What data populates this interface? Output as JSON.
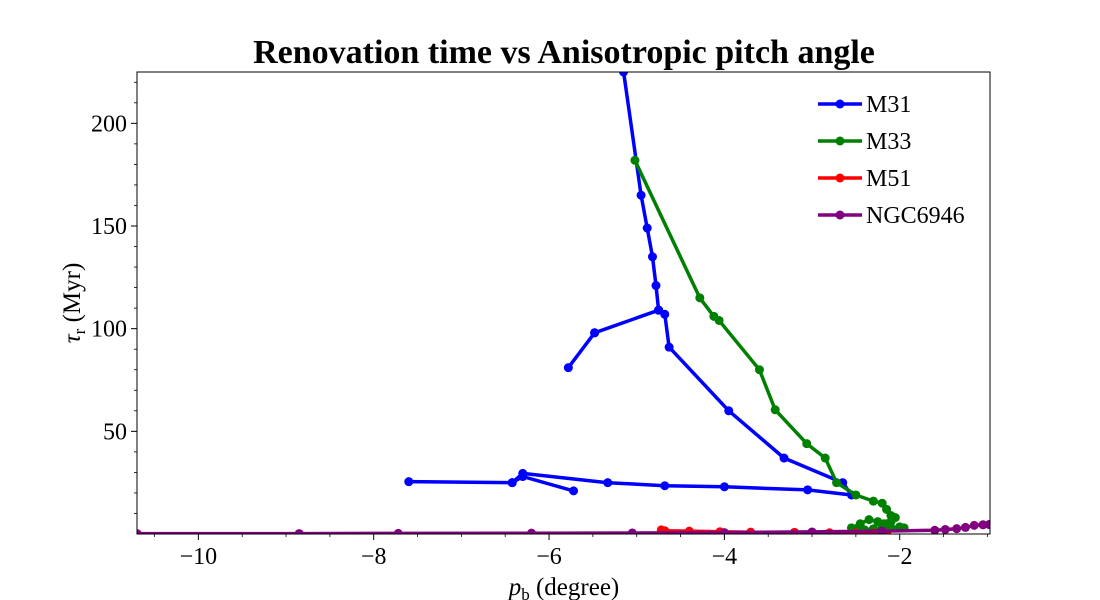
{
  "chart_data": {
    "type": "line",
    "title": "Renovation time vs Anisotropic pitch angle",
    "xlabel_var": "p",
    "xlabel_sub": "b",
    "xlabel_rest": " (degree)",
    "ylabel_var": "τ",
    "ylabel_sub": "r",
    "ylabel_rest": " (Myr)",
    "xlim": [
      -10.7,
      -0.97
    ],
    "ylim": [
      0,
      225
    ],
    "xticks": [
      -10,
      -8,
      -6,
      -4,
      -2
    ],
    "xtick_labels": [
      "−10",
      "−8",
      "−6",
      "−4",
      "−2"
    ],
    "yticks": [
      50,
      100,
      150,
      200
    ],
    "ytick_labels": [
      "50",
      "100",
      "150",
      "200"
    ],
    "legend_position": "top-right",
    "grid": false,
    "series": [
      {
        "name": "M31",
        "color": "#0000ff",
        "x": [
          -5.15,
          -4.95,
          -4.88,
          -4.82,
          -4.78,
          -4.75,
          -4.75,
          -5.48,
          -5.78,
          -5.48,
          -4.75,
          -4.68,
          -4.63,
          -3.95,
          -3.32,
          -2.65,
          -2.55,
          -3.05,
          -4.0,
          -4.68,
          -5.33,
          -6.3,
          -6.42,
          -7.6,
          -6.42,
          -6.3,
          -5.72
        ],
        "y": [
          225,
          165,
          149,
          135,
          121,
          109,
          109,
          98,
          81,
          98,
          109,
          107,
          91,
          60,
          37,
          25,
          19,
          21.5,
          23,
          23.5,
          25,
          29.5,
          25,
          25.5,
          25,
          28,
          21
        ]
      },
      {
        "name": "M33",
        "color": "#008000",
        "x": [
          -5.02,
          -4.28,
          -4.12,
          -4.06,
          -3.6,
          -3.42,
          -3.06,
          -2.85,
          -2.72,
          -2.5,
          -2.3,
          -2.2,
          -2.15,
          -2.1,
          -2.05,
          -2.1,
          -2.15,
          -2.12,
          -2.18,
          -2.25,
          -2.35,
          -2.45,
          -2.55,
          -2.5,
          -2.4,
          -2.3,
          -2.2,
          -2.1,
          -2.0,
          -1.95
        ],
        "y": [
          182,
          115,
          106,
          104,
          80,
          60.5,
          44,
          37,
          25,
          19,
          16,
          15,
          12,
          9,
          8,
          6,
          5,
          4,
          5,
          6,
          7,
          5,
          3,
          2,
          2,
          2.5,
          3,
          3,
          3.5,
          3
        ]
      },
      {
        "name": "M51",
        "color": "#ff0000",
        "x": [
          -4.72,
          -4.68,
          -4.4,
          -4.05,
          -3.7,
          -3.2,
          -2.8,
          -2.5,
          -2.3,
          -2.15
        ],
        "y": [
          2,
          1.6,
          1.4,
          1.1,
          0.9,
          0.8,
          0.6,
          0.5,
          0.4,
          0.3
        ]
      },
      {
        "name": "NGC6946",
        "color": "#800080",
        "x": [
          -10.7,
          -8.85,
          -7.72,
          -6.2,
          -5.05,
          -4.0,
          -3.0,
          -2.2,
          -1.6,
          -1.48,
          -1.35,
          -1.25,
          -1.15,
          -1.05,
          -0.98
        ],
        "y": [
          0.2,
          0.2,
          0.3,
          0.4,
          0.5,
          0.7,
          1.0,
          1.4,
          1.8,
          2.2,
          2.6,
          3.2,
          4.2,
          4.5,
          4.6
        ]
      }
    ]
  }
}
